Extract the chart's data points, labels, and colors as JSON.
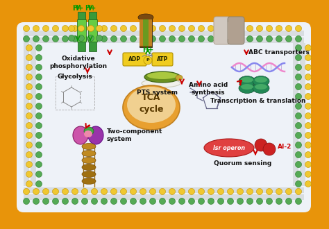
{
  "bg_color": "#ffffff",
  "labels": {
    "oxidative_phosphorylation": "Oxidative\nphosphorylation",
    "abc_transporters": "ABC transporters",
    "pts_system": "PTS system",
    "tca_cycle": "TCA\ncycle",
    "glycolysis": "Glycolysis",
    "amino_acid": "Amino acid\nsynthesis",
    "transcription": "Transcription & translation",
    "lsr_operon": "lsr operon",
    "ai2": "AI-2",
    "quorum_sensing": "Quorum sensing",
    "two_component": "Two-component\nsystem",
    "adp": "ADP",
    "atp": "ATP",
    "p": "P",
    "h_plus": "H+"
  },
  "colors": {
    "red_arrow": "#cc0000",
    "green_arrow": "#009900",
    "label_text": "#111111",
    "membrane_orange": "#E8940A",
    "membrane_light": "#F5C840",
    "membrane_inner": "#e0e8f0",
    "dot_green": "#55aa55",
    "dot_yellow": "#f0c830",
    "green_channel": "#3a9a3a",
    "green_channel_light": "#66cc44",
    "brown_channel": "#7a4a10",
    "brown_channel_mid": "#c08020",
    "brown_channel_green": "#6a9a20",
    "gray_transporter": "#b0a090",
    "gray_transporter_light": "#d0c8c0",
    "tca_fill_outer": "#e8a030",
    "tca_fill_inner": "#f0d090",
    "lsr_fill": "#e04040",
    "ai2_fill": "#cc2222",
    "two_comp_purple1": "#cc55aa",
    "two_comp_purple2": "#9933aa",
    "two_comp_green": "#44aa44",
    "brown_coil": "#b07820",
    "pts_green_dark": "#6a9020",
    "pts_green_light": "#aac840",
    "pts_white": "#f0f0e8",
    "dna_pink": "#ee88cc",
    "dna_blue": "#8888ee",
    "dna_green": "#44aa66",
    "ribosome_green": "#228855",
    "ribosome_light": "#44aa66",
    "adp_yellow": "#f0cc20",
    "adp_edge": "#b09000",
    "sugar_gray": "#888888"
  }
}
